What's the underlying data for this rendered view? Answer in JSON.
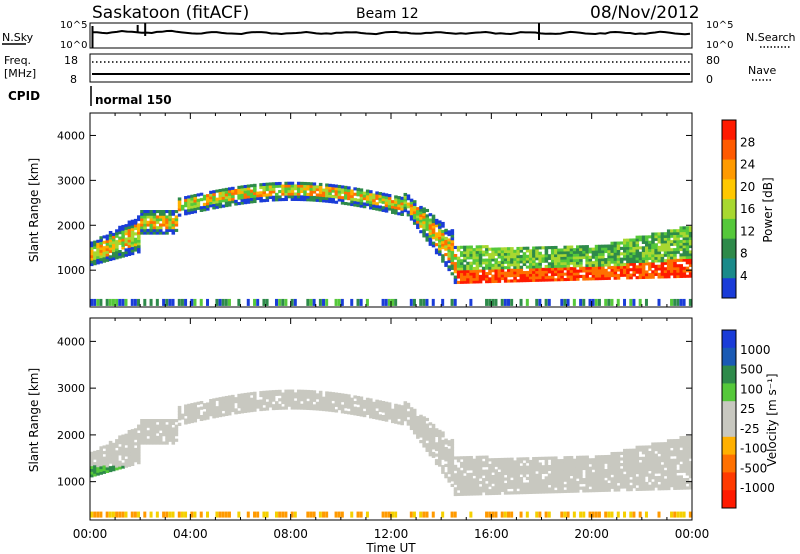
{
  "header": {
    "station": "Saskatoon (fitACF)",
    "beam": "Beam 12",
    "date": "08/Nov/2012"
  },
  "status_panels": {
    "nsky_label": "N.Sky",
    "nsearch_label": "N.Search",
    "freq_label": "Freq.",
    "freq_unit": "[MHz]",
    "nave_label": "Nave",
    "cpid_label": "CPID",
    "cpid_value": "normal 150",
    "noise_ticks_left": [
      "10^5",
      "10^0"
    ],
    "noise_ticks_right": [
      "10^5",
      "10^0"
    ],
    "freq_ticks": [
      "18",
      "8"
    ],
    "nave_ticks": [
      "80",
      "0"
    ]
  },
  "colors": {
    "echo_gray": "#c8c8c0",
    "red": "#ff1a00",
    "orange": "#ff9a00",
    "green": "#55c83a",
    "darkgreen": "#2e8a4a",
    "blue": "#1a3cd8"
  },
  "chart_data": [
    {
      "type": "heatmap",
      "name": "power",
      "ylabel": "Slant Range [km]",
      "colorbar_label": "Power [dB]",
      "colorbar_ticks": [
        "28",
        "24",
        "20",
        "16",
        "12",
        "8",
        "4"
      ],
      "colorbar_range": [
        0,
        32
      ],
      "x_range_hours": [
        0,
        24
      ],
      "ylim": [
        180,
        4500
      ],
      "yticks": [
        1000,
        2000,
        3000,
        4000
      ],
      "ytick_labels": [
        "1000",
        "2000",
        "3000",
        "4000"
      ]
    },
    {
      "type": "heatmap",
      "name": "velocity",
      "xlabel": "Time UT",
      "ylabel": "Slant Range [km]",
      "colorbar_label": "Velocity [m s⁻¹]",
      "colorbar_ticks": [
        "1000",
        "500",
        "100",
        "25",
        "-25",
        "-100",
        "-500",
        "-1000"
      ],
      "x_range_hours": [
        0,
        24
      ],
      "ylim": [
        180,
        4500
      ],
      "yticks": [
        1000,
        2000,
        3000,
        4000
      ],
      "ytick_labels": [
        "1000",
        "2000",
        "3000",
        "4000"
      ],
      "xtick_labels": [
        "00:00",
        "04:00",
        "08:00",
        "12:00",
        "16:00",
        "20:00",
        "00:00"
      ]
    }
  ]
}
